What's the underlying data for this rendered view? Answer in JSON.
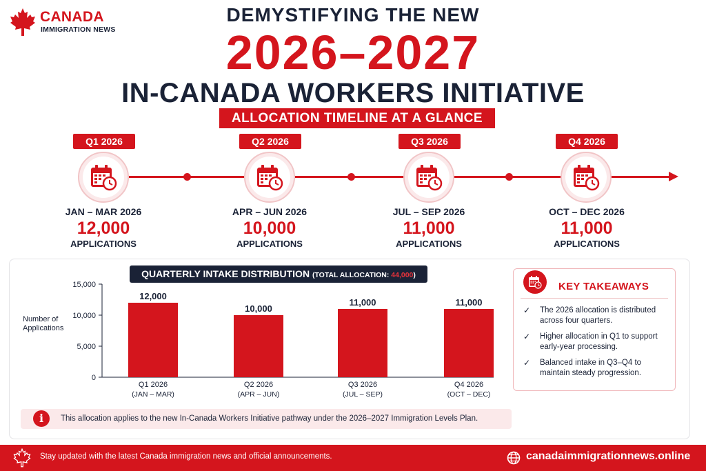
{
  "brand": {
    "name": "CANADA",
    "subtitle": "IMMIGRATION NEWS",
    "logo_icon": "maple-leaf-icon"
  },
  "headline": {
    "top": "DEMYSTIFYING THE NEW",
    "years": "2026–2027",
    "main": "IN-CANADA WORKERS INITIATIVE",
    "banner": "ALLOCATION TIMELINE AT A GLANCE"
  },
  "timeline": {
    "quarters": [
      {
        "badge": "Q1 2026",
        "range": "JAN – MAR 2026",
        "count": "12,000",
        "unit": "APPLICATIONS",
        "icon": "calendar-clock-icon"
      },
      {
        "badge": "Q2 2026",
        "range": "APR – JUN 2026",
        "count": "10,000",
        "unit": "APPLICATIONS",
        "icon": "calendar-clock-icon"
      },
      {
        "badge": "Q3 2026",
        "range": "JUL – SEP 2026",
        "count": "11,000",
        "unit": "APPLICATIONS",
        "icon": "calendar-clock-icon"
      },
      {
        "badge": "Q4 2026",
        "range": "OCT – DEC 2026",
        "count": "11,000",
        "unit": "APPLICATIONS",
        "icon": "calendar-clock-icon"
      }
    ]
  },
  "chart_header": {
    "title": "QUARTERLY INTAKE DISTRIBUTION",
    "total_prefix": "(TOTAL ALLOCATION: ",
    "total_value": "44,000",
    "total_suffix": ")"
  },
  "chart_data": {
    "type": "bar",
    "categories": [
      "Q1 2026",
      "Q2 2026",
      "Q3 2026",
      "Q4 2026"
    ],
    "category_sublabels": [
      "(JAN – MAR)",
      "(APR – JUN)",
      "(JUL – SEP)",
      "(OCT – DEC)"
    ],
    "values": [
      12000,
      10000,
      11000,
      11000
    ],
    "value_labels": [
      "12,000",
      "10,000",
      "11,000",
      "11,000"
    ],
    "ylabel": "Number of Applications",
    "ylabel_lines": [
      "Number of",
      "Applications"
    ],
    "ylim": [
      0,
      15000
    ],
    "yticks": [
      0,
      5000,
      10000,
      15000
    ],
    "ytick_labels": [
      "0",
      "5,000",
      "10,000",
      "15,000"
    ],
    "grid": false,
    "bar_color": "#d4151d"
  },
  "takeaways": {
    "title": "KEY TAKEAWAYS",
    "icon": "calendar-clock-icon",
    "check": "✓",
    "items": [
      {
        "line1": "The 2026 allocation is distributed",
        "line2": "across four quarters."
      },
      {
        "line1": "Higher allocation in Q1 to support",
        "line2": "early-year processing."
      },
      {
        "line1": "Balanced intake in Q3–Q4 to",
        "line2": "maintain steady progression."
      }
    ]
  },
  "note": {
    "icon": "info-icon",
    "icon_glyph": "i",
    "text": "This allocation applies to the new In-Canada Workers Initiative pathway under the 2026–2027 Immigration Levels Plan."
  },
  "footer": {
    "text": "Stay updated with the latest Canada immigration news and official announcements.",
    "url": "canadaimmigrationnews.online",
    "globe_icon": "globe-icon"
  },
  "colors": {
    "accent": "#d4151d",
    "navy": "#1a2236",
    "tint": "#fbe9ea"
  }
}
